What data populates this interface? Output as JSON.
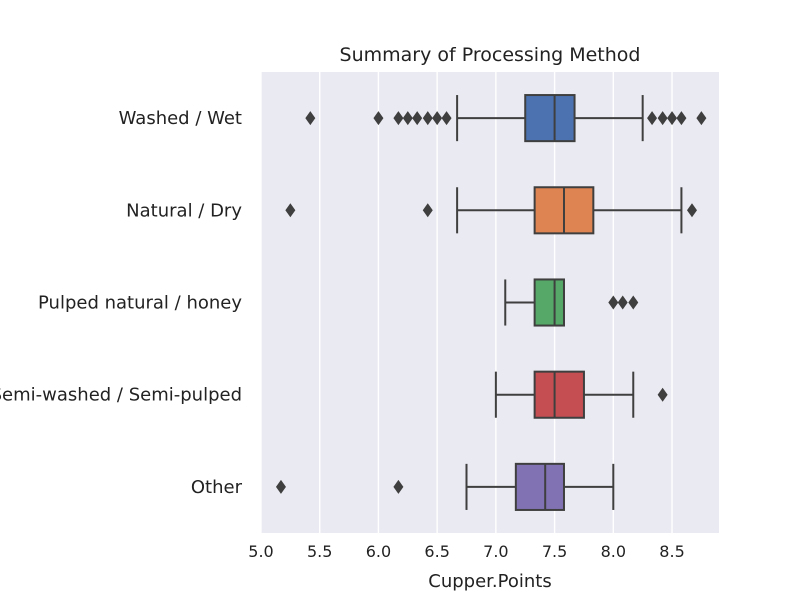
{
  "chart_data": {
    "type": "boxplot",
    "orientation": "horizontal",
    "title": "Summary of Processing Method",
    "xlabel": "Cupper.Points",
    "ylabel": "",
    "xlim": [
      5.0,
      8.9
    ],
    "xticks": [
      "5.0",
      "5.5",
      "6.0",
      "6.5",
      "7.0",
      "7.5",
      "8.0",
      "8.5"
    ],
    "grid": true,
    "categories": [
      "Washed / Wet",
      "Natural / Dry",
      "Pulped natural / honey",
      "Semi-washed / Semi-pulped",
      "Other"
    ],
    "boxes": [
      {
        "name": "Washed / Wet",
        "color": "#4c72b0",
        "whisker_low": 6.67,
        "q1": 7.25,
        "median": 7.5,
        "q3": 7.67,
        "whisker_high": 8.25,
        "outliers": [
          5.42,
          6.0,
          6.17,
          6.25,
          6.33,
          6.42,
          6.5,
          6.58,
          8.33,
          8.42,
          8.5,
          8.58,
          8.75
        ]
      },
      {
        "name": "Natural / Dry",
        "color": "#dd8452",
        "whisker_low": 6.67,
        "q1": 7.33,
        "median": 7.58,
        "q3": 7.83,
        "whisker_high": 8.58,
        "outliers": [
          5.25,
          6.42,
          8.67
        ]
      },
      {
        "name": "Pulped natural / honey",
        "color": "#55a868",
        "whisker_low": 7.08,
        "q1": 7.33,
        "median": 7.5,
        "q3": 7.58,
        "whisker_high": 7.58,
        "outliers": [
          8.0,
          8.08,
          8.17
        ]
      },
      {
        "name": "Semi-washed / Semi-pulped",
        "color": "#c44e52",
        "whisker_low": 7.0,
        "q1": 7.33,
        "median": 7.5,
        "q3": 7.75,
        "whisker_high": 8.17,
        "outliers": [
          8.42
        ]
      },
      {
        "name": "Other",
        "color": "#8172b3",
        "whisker_low": 6.75,
        "q1": 7.17,
        "median": 7.42,
        "q3": 7.58,
        "whisker_high": 8.0,
        "outliers": [
          5.17,
          6.17
        ]
      }
    ]
  }
}
